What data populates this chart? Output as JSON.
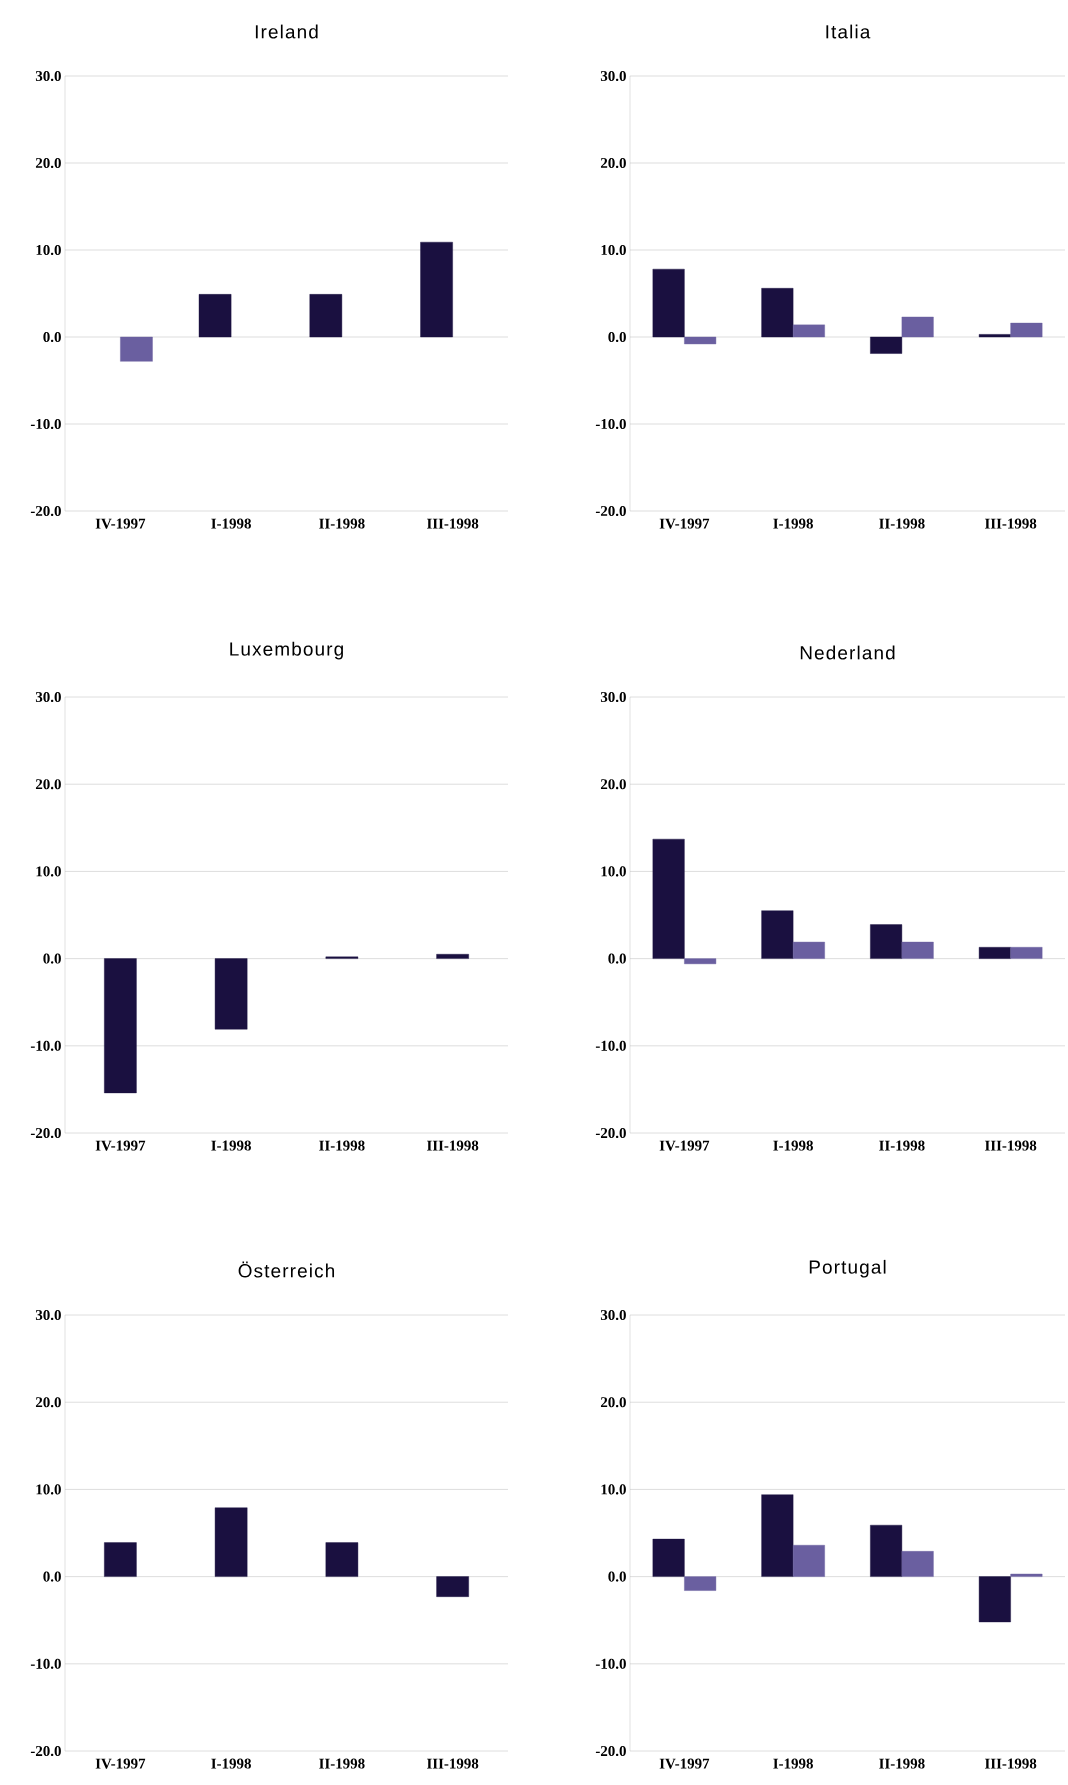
{
  "chart_data": [
    {
      "type": "bar",
      "title": "Ireland",
      "categories": [
        "IV-1997",
        "I-1998",
        "II-1998",
        "III-1998"
      ],
      "series": [
        {
          "color": "#1a1040",
          "values": [
            null,
            4.9,
            4.9,
            10.9
          ]
        },
        {
          "color": "#6a5fa0",
          "values": [
            -2.8,
            null,
            null,
            null
          ]
        }
      ],
      "ylim": [
        -20,
        30
      ],
      "yticks": [
        {
          "value": -20,
          "label": "-20.0"
        },
        {
          "value": -10,
          "label": "-10.0"
        },
        {
          "value": 0,
          "label": "0.0"
        },
        {
          "value": 10,
          "label": "10.0"
        },
        {
          "value": 20,
          "label": "20.0"
        },
        {
          "value": 30,
          "label": "30.0"
        }
      ],
      "grid": "y"
    },
    {
      "type": "bar",
      "title": "Italia",
      "categories": [
        "IV-1997",
        "I-1998",
        "II-1998",
        "III-1998"
      ],
      "series": [
        {
          "color": "#1a1040",
          "values": [
            7.8,
            5.6,
            -1.9,
            0.3
          ]
        },
        {
          "color": "#6a5fa0",
          "values": [
            -0.8,
            1.4,
            2.3,
            1.6
          ]
        }
      ],
      "ylim": [
        -20,
        30
      ],
      "yticks": [
        {
          "value": -20,
          "label": "-20.0"
        },
        {
          "value": -10,
          "label": "-10.0"
        },
        {
          "value": 0,
          "label": "0.0"
        },
        {
          "value": 10,
          "label": "10.0"
        },
        {
          "value": 20,
          "label": "20.0"
        },
        {
          "value": 30,
          "label": "30.0"
        }
      ],
      "grid": "y"
    },
    {
      "type": "bar",
      "title": "Luxembourg",
      "categories": [
        "IV-1997",
        "I-1998",
        "II-1998",
        "III-1998"
      ],
      "series": [
        {
          "color": "#1a1040",
          "values": [
            -15.4,
            -8.1,
            0.2,
            0.5
          ]
        }
      ],
      "ylim": [
        -20,
        30
      ],
      "yticks": [
        {
          "value": -20,
          "label": "-20.0"
        },
        {
          "value": -10,
          "label": "-10.0"
        },
        {
          "value": 0,
          "label": "0.0"
        },
        {
          "value": 10,
          "label": "10.0"
        },
        {
          "value": 20,
          "label": "20.0"
        },
        {
          "value": 30,
          "label": "30.0"
        }
      ],
      "grid": "y"
    },
    {
      "type": "bar",
      "title": "Nederland",
      "categories": [
        "IV-1997",
        "I-1998",
        "II-1998",
        "III-1998"
      ],
      "series": [
        {
          "color": "#1a1040",
          "values": [
            13.7,
            5.5,
            3.9,
            1.3
          ]
        },
        {
          "color": "#6a5fa0",
          "values": [
            -0.6,
            1.9,
            1.9,
            1.3
          ]
        }
      ],
      "ylim": [
        -20,
        30
      ],
      "yticks": [
        {
          "value": -20,
          "label": "-20.0"
        },
        {
          "value": -10,
          "label": "-10.0"
        },
        {
          "value": 0,
          "label": "0.0"
        },
        {
          "value": 10,
          "label": "10.0"
        },
        {
          "value": 20,
          "label": "20.0"
        },
        {
          "value": 30,
          "label": "30.0"
        }
      ],
      "grid": "y"
    },
    {
      "type": "bar",
      "title": "Österreich",
      "categories": [
        "IV-1997",
        "I-1998",
        "II-1998",
        "III-1998"
      ],
      "series": [
        {
          "color": "#1a1040",
          "values": [
            3.9,
            7.9,
            3.9,
            -2.3
          ]
        }
      ],
      "ylim": [
        -20,
        30
      ],
      "yticks": [
        {
          "value": -20,
          "label": "-20.0"
        },
        {
          "value": -10,
          "label": "-10.0"
        },
        {
          "value": 0,
          "label": "0.0"
        },
        {
          "value": 10,
          "label": "10.0"
        },
        {
          "value": 20,
          "label": "20.0"
        },
        {
          "value": 30,
          "label": "30.0"
        }
      ],
      "grid": "y"
    },
    {
      "type": "bar",
      "title": "Portugal",
      "categories": [
        "IV-1997",
        "I-1998",
        "II-1998",
        "III-1998"
      ],
      "series": [
        {
          "color": "#1a1040",
          "values": [
            4.3,
            9.4,
            5.9,
            -5.2
          ]
        },
        {
          "color": "#6a5fa0",
          "values": [
            -1.6,
            3.6,
            2.9,
            0.3
          ]
        }
      ],
      "ylim": [
        -20,
        30
      ],
      "yticks": [
        {
          "value": -20,
          "label": "-20.0"
        },
        {
          "value": -10,
          "label": "-10.0"
        },
        {
          "value": 0,
          "label": "0.0"
        },
        {
          "value": 10,
          "label": "10.0"
        },
        {
          "value": 20,
          "label": "20.0"
        },
        {
          "value": 30,
          "label": "30.0"
        }
      ],
      "grid": "y"
    }
  ]
}
